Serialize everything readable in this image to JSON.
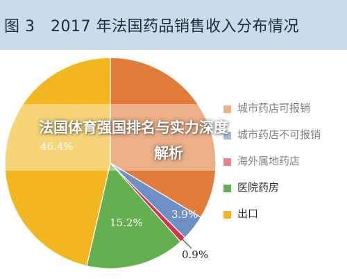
{
  "header": {
    "title": "图 3　2017 年法国药品销售收入分布情况"
  },
  "overlay": {
    "line1": "法国体育强国排名与实力深度",
    "line2": "解析"
  },
  "chart_data": {
    "type": "pie",
    "title": "图 3　2017 年法国药品销售收入分布情况",
    "start_angle_deg": 0,
    "direction": "clockwise",
    "slices": [
      {
        "label": "城市药店可报销",
        "value": 33.6,
        "value_label": "",
        "color": "#e07b39"
      },
      {
        "label": "城市药店不可报销",
        "value": 3.9,
        "value_label": "3.9%",
        "color": "#6f8fc7"
      },
      {
        "label": "海外属地药店",
        "value": 0.9,
        "value_label": "0.9%",
        "color": "#d7334b"
      },
      {
        "label": "医院药房",
        "value": 15.2,
        "value_label": "15.2%",
        "color": "#64b04f"
      },
      {
        "label": "出口",
        "value": 46.4,
        "value_label": "46.4%",
        "color": "#f2b71e"
      }
    ],
    "legend_position": "right"
  }
}
